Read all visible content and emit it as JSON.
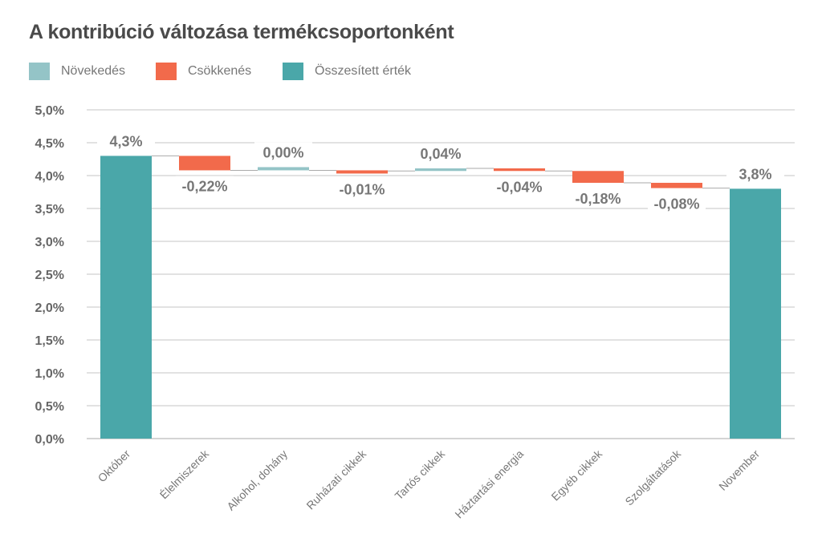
{
  "chart_data": {
    "type": "waterfall",
    "title": "A kontribúció változása termékcsoportonként",
    "legend": [
      {
        "label": "Növekedés",
        "color": "#94c4c7"
      },
      {
        "label": "Csökkenés",
        "color": "#f26a4b"
      },
      {
        "label": "Összesített érték",
        "color": "#4aa7a9"
      }
    ],
    "legend_position": "top-left",
    "categories": [
      "Október",
      "Élelmiszerek",
      "Alkohol, dohány",
      "Ruházati cikkek",
      "Tartós cikkek",
      "Háztartási energia",
      "Egyéb cikkek",
      "Szolgáltatások",
      "November"
    ],
    "values": [
      4.3,
      -0.22,
      0.0,
      -0.01,
      0.04,
      -0.04,
      -0.18,
      -0.08,
      3.8
    ],
    "kinds": [
      "total",
      "decrease",
      "increase",
      "decrease",
      "increase",
      "decrease",
      "decrease",
      "decrease",
      "total"
    ],
    "data_labels": [
      "4,3%",
      "-0,22%",
      "0,00%",
      "-0,01%",
      "0,04%",
      "-0,04%",
      "-0,18%",
      "-0,08%",
      "3,8%"
    ],
    "ylim": [
      0,
      5
    ],
    "yticks": [
      "0,0%",
      "0,5%",
      "1,0%",
      "1,5%",
      "2,0%",
      "2,5%",
      "3,0%",
      "3,5%",
      "4,0%",
      "4,5%",
      "5,0%"
    ],
    "grid": true,
    "xlabel": "",
    "ylabel": ""
  }
}
